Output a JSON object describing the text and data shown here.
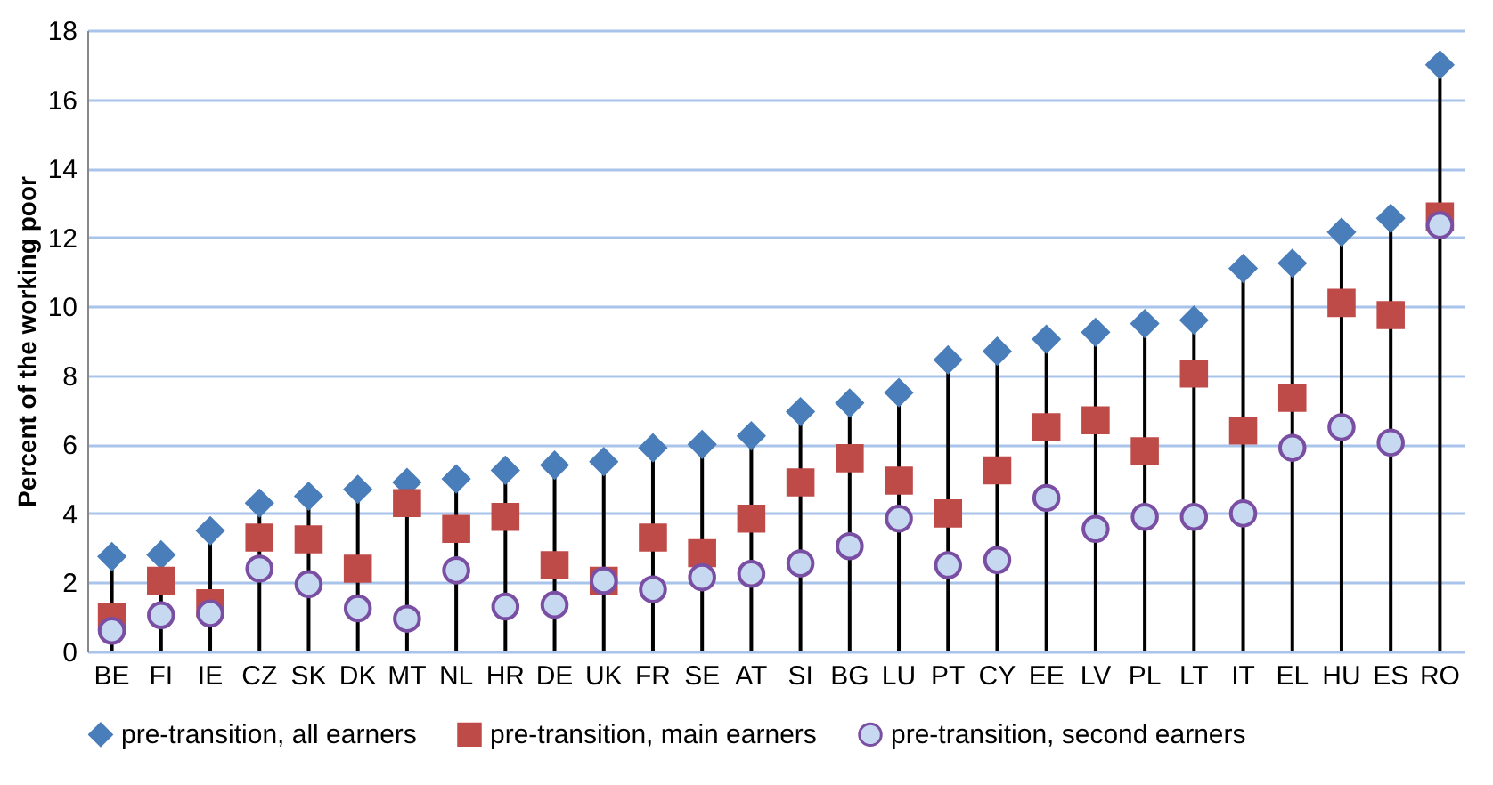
{
  "chart_data": {
    "type": "lollipop",
    "ylabel": "Percent of the working poor",
    "categories": [
      "BE",
      "FI",
      "IE",
      "CZ",
      "SK",
      "DK",
      "MT",
      "NL",
      "HR",
      "DE",
      "UK",
      "FR",
      "SE",
      "AT",
      "SI",
      "BG",
      "LU",
      "PT",
      "CY",
      "EE",
      "LV",
      "PL",
      "LT",
      "IT",
      "EL",
      "HU",
      "ES",
      "RO"
    ],
    "series": [
      {
        "name": "pre-transition, all earners",
        "type": "lollipop",
        "marker": "diamond",
        "color": "#4a7ebb",
        "values": [
          2.75,
          2.8,
          3.5,
          4.3,
          4.5,
          4.7,
          4.9,
          5.0,
          5.25,
          5.4,
          5.5,
          5.9,
          6.0,
          6.25,
          6.95,
          7.2,
          7.5,
          8.45,
          8.7,
          9.05,
          9.25,
          9.5,
          9.6,
          11.1,
          11.25,
          12.15,
          12.55,
          17.0
        ]
      },
      {
        "name": "pre-transition, main earners",
        "type": "scatter",
        "marker": "square",
        "color": "#be4b48",
        "values": [
          1.0,
          2.05,
          1.4,
          3.3,
          3.25,
          2.4,
          4.3,
          3.55,
          3.9,
          2.5,
          2.05,
          3.3,
          2.85,
          3.85,
          4.9,
          5.6,
          4.95,
          4.0,
          5.25,
          6.5,
          6.7,
          5.8,
          8.05,
          6.4,
          7.35,
          10.1,
          9.75,
          12.6
        ]
      },
      {
        "name": "pre-transition, second earners",
        "type": "scatter",
        "marker": "circle",
        "color": "#c6d9f1",
        "values": [
          0.6,
          1.05,
          1.1,
          2.4,
          1.95,
          1.25,
          0.95,
          2.35,
          1.3,
          1.35,
          2.05,
          1.8,
          2.15,
          2.25,
          2.55,
          3.05,
          3.85,
          2.5,
          2.65,
          4.45,
          3.55,
          3.9,
          3.9,
          4.0,
          5.9,
          6.5,
          6.05,
          12.35
        ]
      }
    ],
    "ylim": [
      0,
      18
    ],
    "yticks": [
      0,
      2,
      4,
      6,
      8,
      10,
      12,
      14,
      16,
      18
    ],
    "grid": "y",
    "legend": "bottom"
  }
}
